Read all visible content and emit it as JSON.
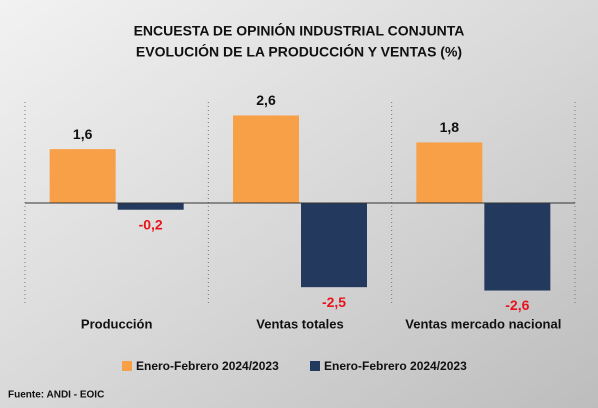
{
  "chart_data": {
    "type": "bar",
    "title": "ENCUESTA DE OPINIÓN INDUSTRIAL CONJUNTA",
    "subtitle": "EVOLUCIÓN DE LA PRODUCCIÓN Y VENTAS (%)",
    "categories": [
      "Producción",
      "Ventas totales",
      "Ventas mercado nacional"
    ],
    "series": [
      {
        "name": "Enero-Febrero 2024/2023",
        "color": "#f7a048",
        "values": [
          1.6,
          2.6,
          1.8
        ],
        "value_labels": [
          "1,6",
          "2,6",
          "1,8"
        ]
      },
      {
        "name": "Enero-Febrero 2024/2023",
        "color": "#233a5e",
        "values": [
          -0.2,
          -2.5,
          -2.6
        ],
        "value_labels": [
          "-0,2",
          "-2,5",
          "-2,6"
        ]
      }
    ],
    "ylim": [
      -3,
      3
    ],
    "source": "Fuente: ANDI - EOIC"
  }
}
